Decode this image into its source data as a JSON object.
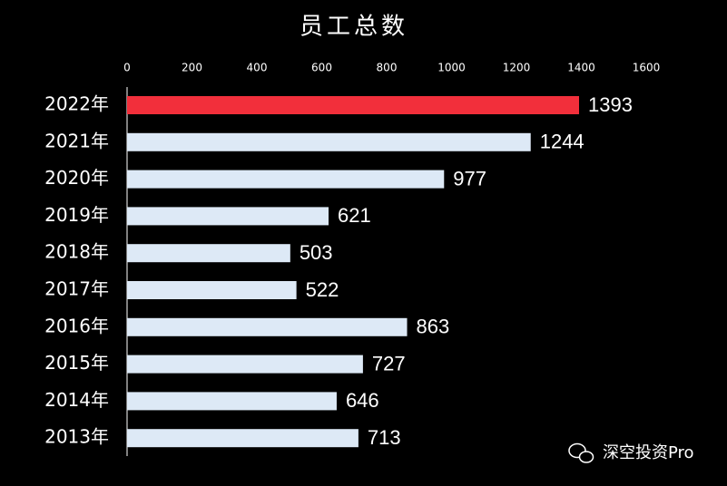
{
  "chart_data": {
    "type": "barh",
    "title": "员工总数",
    "categories": [
      "2022年",
      "2021年",
      "2020年",
      "2019年",
      "2018年",
      "2017年",
      "2016年",
      "2015年",
      "2014年",
      "2013年"
    ],
    "values": [
      1393,
      1244,
      977,
      621,
      503,
      522,
      863,
      727,
      646,
      713
    ],
    "colors": [
      "#f22f3b",
      "#dde9f6",
      "#dde9f6",
      "#dde9f6",
      "#dde9f6",
      "#dde9f6",
      "#dde9f6",
      "#dde9f6",
      "#dde9f6",
      "#dde9f6"
    ],
    "xlim": [
      0,
      1600
    ],
    "xticks": [
      0,
      200,
      400,
      600,
      800,
      1000,
      1200,
      1400,
      1600
    ],
    "grid": false
  },
  "watermark": "深空投资Pro"
}
